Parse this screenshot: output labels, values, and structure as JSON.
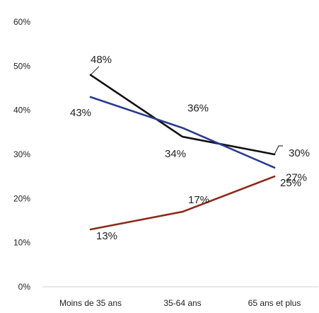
{
  "chart_data": {
    "type": "line",
    "title": "",
    "categories": [
      "Moins de 35 ans",
      "35-64 ans",
      "65 ans et plus"
    ],
    "ylim": [
      0,
      60
    ],
    "yticks": [
      "0%",
      "10%",
      "20%",
      "30%",
      "40%",
      "50%",
      "60%"
    ],
    "ytick_values": [
      0,
      10,
      20,
      30,
      40,
      50,
      60
    ],
    "grid": false,
    "series": [
      {
        "values": [
          48,
          34,
          30
        ],
        "labels": [
          "48%",
          "34%",
          "30%"
        ],
        "color": "#111111"
      },
      {
        "values": [
          43,
          36,
          27
        ],
        "labels": [
          "43%",
          "36%",
          "27%"
        ],
        "color": "#2b3a8f"
      },
      {
        "values": [
          13,
          17,
          25
        ],
        "labels": [
          "13%",
          "17%",
          "25%"
        ],
        "color": "#8b2a1a"
      }
    ]
  }
}
